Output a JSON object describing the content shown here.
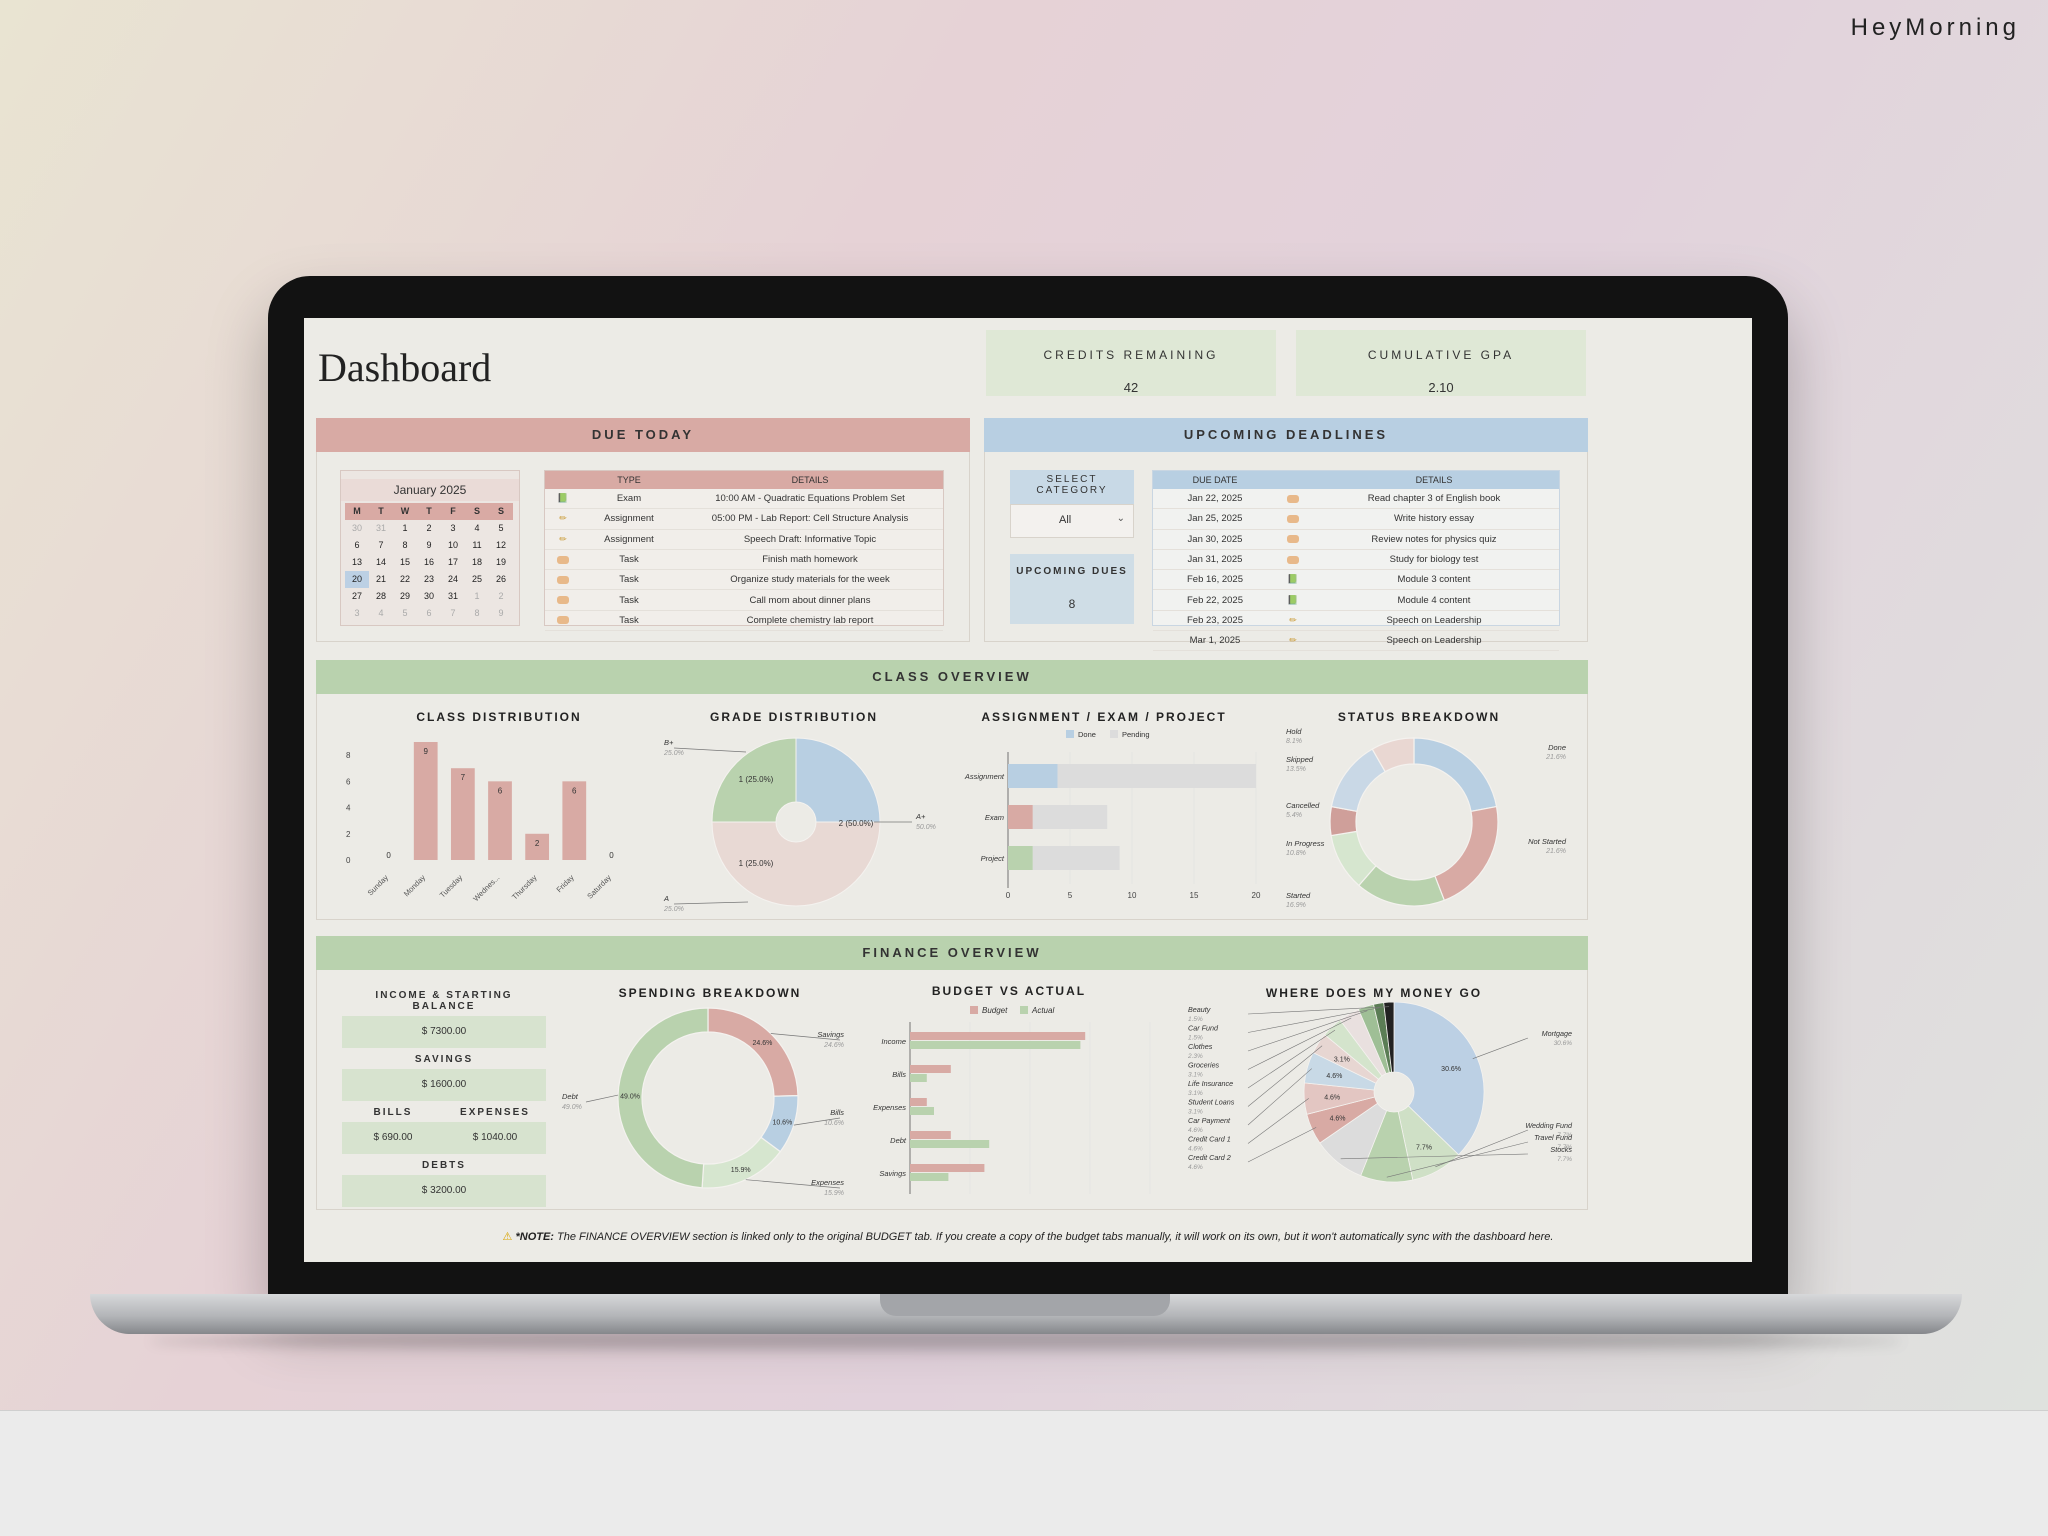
{
  "brand": "HeyMorning",
  "colors": {
    "pink": "#d8aaa4",
    "blue": "#b8cfe2",
    "green": "#b9d2ae",
    "sand": "#e8d9d4",
    "grey": "#dcdcdc"
  },
  "dashboard": {
    "title": "Dashboard",
    "credits_label": "CREDITS REMAINING",
    "credits_value": "42",
    "gpa_label": "CUMULATIVE GPA",
    "gpa_value": "2.10"
  },
  "due_today": {
    "title": "DUE TODAY",
    "calendar": {
      "month": "January 2025",
      "weekdays": [
        "M",
        "T",
        "W",
        "T",
        "F",
        "S",
        "S"
      ],
      "days": [
        "30",
        "31",
        "1",
        "2",
        "3",
        "4",
        "5",
        "6",
        "7",
        "8",
        "9",
        "10",
        "11",
        "12",
        "13",
        "14",
        "15",
        "16",
        "17",
        "18",
        "19",
        "20",
        "21",
        "22",
        "23",
        "24",
        "25",
        "26",
        "27",
        "28",
        "29",
        "30",
        "31",
        "1",
        "2",
        "3",
        "4",
        "5",
        "6",
        "7",
        "8",
        "9"
      ]
    },
    "columns": [
      "TYPE",
      "DETAILS"
    ],
    "rows": [
      {
        "icon": "book-icon",
        "type": "Exam",
        "details": "10:00 AM - Quadratic Equations Problem Set"
      },
      {
        "icon": "pencil-icon",
        "type": "Assignment",
        "details": "05:00 PM - Lab Report: Cell Structure Analysis"
      },
      {
        "icon": "pencil-icon",
        "type": "Assignment",
        "details": "Speech Draft: Informative Topic"
      },
      {
        "icon": "task-icon",
        "type": "Task",
        "details": "Finish math homework"
      },
      {
        "icon": "task-icon",
        "type": "Task",
        "details": "Organize study materials for the week"
      },
      {
        "icon": "task-icon",
        "type": "Task",
        "details": "Call mom about dinner plans"
      },
      {
        "icon": "task-icon",
        "type": "Task",
        "details": "Complete chemistry lab report"
      }
    ]
  },
  "upcoming": {
    "title": "UPCOMING DEADLINES",
    "select_label": "SELECT CATEGORY",
    "select_value": "All",
    "dues_label": "UPCOMING DUES",
    "dues_value": "8",
    "columns": [
      "DUE DATE",
      "DETAILS"
    ],
    "rows": [
      {
        "date": "Jan 22, 2025",
        "icon": "task-icon",
        "details": "Read chapter 3 of English book"
      },
      {
        "date": "Jan 25, 2025",
        "icon": "task-icon",
        "details": "Write history essay"
      },
      {
        "date": "Jan 30, 2025",
        "icon": "task-icon",
        "details": "Review notes for physics quiz"
      },
      {
        "date": "Jan 31, 2025",
        "icon": "task-icon",
        "details": "Study for biology test"
      },
      {
        "date": "Feb 16, 2025",
        "icon": "book-icon",
        "details": "Module 3 content"
      },
      {
        "date": "Feb 22, 2025",
        "icon": "book-icon",
        "details": "Module 4 content"
      },
      {
        "date": "Feb 23, 2025",
        "icon": "pencil-icon",
        "details": "Speech on Leadership"
      },
      {
        "date": "Mar 1, 2025",
        "icon": "pencil-icon",
        "details": "Speech on Leadership"
      }
    ]
  },
  "class_overview": {
    "title": "CLASS OVERVIEW"
  },
  "finance_overview": {
    "title": "FINANCE OVERVIEW",
    "income_label": "INCOME & STARTING BALANCE",
    "income_value": "$ 7300.00",
    "savings_label": "SAVINGS",
    "savings_value": "$ 1600.00",
    "bills_label": "BILLS",
    "bills_value": "$ 690.00",
    "expenses_label": "EXPENSES",
    "expenses_value": "$ 1040.00",
    "debts_label": "DEBTS",
    "debts_value": "$ 3200.00"
  },
  "note": {
    "prefix": "*NOTE:",
    "text": "The FINANCE OVERVIEW section is linked only to the original BUDGET tab. If you create a copy of the budget tabs manually, it will work on its own, but it won't automatically sync with the dashboard here."
  },
  "chart_data": [
    {
      "type": "bar",
      "title": "CLASS DISTRIBUTION",
      "categories": [
        "Sunday",
        "Monday",
        "Tuesday",
        "Wednes...",
        "Thursday",
        "Friday",
        "Saturday"
      ],
      "values": [
        0,
        9,
        7,
        6,
        2,
        6,
        0
      ],
      "yticks": [
        "0",
        "2",
        "4",
        "6",
        "8"
      ],
      "ylim": [
        0,
        8
      ]
    },
    {
      "type": "pie",
      "title": "GRADE DISTRIBUTION",
      "slices": [
        {
          "label": "B+",
          "value": 1,
          "pct_label": "1 (25.0%)",
          "side_pct": "25.0%"
        },
        {
          "label": "A+",
          "value": 2,
          "pct_label": "2 (50.0%)",
          "side_pct": "50.0%"
        },
        {
          "label": "A",
          "value": 1,
          "pct_label": "1 (25.0%)",
          "side_pct": "25.0%"
        }
      ]
    },
    {
      "type": "bar",
      "title": "ASSIGNMENT / EXAM / PROJECT",
      "categories": [
        "Assignment",
        "Exam",
        "Project"
      ],
      "series": [
        {
          "name": "Done",
          "values": [
            4,
            2,
            2
          ]
        },
        {
          "name": "Pending",
          "values": [
            16,
            6,
            7
          ]
        }
      ],
      "xticks": [
        "0",
        "5",
        "10",
        "15",
        "20"
      ],
      "xlim": [
        0,
        20
      ]
    },
    {
      "type": "pie",
      "title": "STATUS BREAKDOWN",
      "slices": [
        {
          "label": "Done",
          "value": 21.6,
          "pct": "21.6%"
        },
        {
          "label": "Not Started",
          "value": 21.6,
          "pct": "21.6%"
        },
        {
          "label": "Started",
          "value": 16.9,
          "pct": "16.9%"
        },
        {
          "label": "In Progress",
          "value": 10.8,
          "pct": "10.8%"
        },
        {
          "label": "Cancelled",
          "value": 5.4,
          "pct": "5.4%"
        },
        {
          "label": "Skipped",
          "value": 13.5,
          "pct": "13.5%"
        },
        {
          "label": "Hold",
          "value": 8.1,
          "pct": "8.1%"
        }
      ]
    },
    {
      "type": "pie",
      "title": "SPENDING BREAKDOWN",
      "slices": [
        {
          "label": "Savings",
          "value": 24.6,
          "pct": "24.6%"
        },
        {
          "label": "Bills",
          "value": 10.6,
          "pct": "10.6%"
        },
        {
          "label": "Expenses",
          "value": 15.9,
          "pct": "15.9%"
        },
        {
          "label": "Debt",
          "value": 49.0,
          "pct": "49.0%"
        }
      ]
    },
    {
      "type": "bar",
      "title": "BUDGET VS ACTUAL",
      "categories": [
        "Income",
        "Bills",
        "Expenses",
        "Debt",
        "Savings"
      ],
      "series": [
        {
          "name": "Budget",
          "values": [
            7300,
            1700,
            700,
            1700,
            3100
          ]
        },
        {
          "name": "Actual",
          "values": [
            7100,
            700,
            1000,
            3300,
            1600
          ]
        }
      ],
      "xlim": [
        0,
        10000
      ]
    },
    {
      "type": "pie",
      "title": "WHERE DOES MY MONEY GO",
      "slices": [
        {
          "label": "Mortgage",
          "value": 30.6,
          "pct": "30.6%"
        },
        {
          "label": "Wedding Fund",
          "value": 7.7,
          "pct": "7.7%"
        },
        {
          "label": "Travel Fund",
          "value": 7.7,
          "pct": "7.7%"
        },
        {
          "label": "Stocks",
          "value": 7.7,
          "pct": "7.7%"
        },
        {
          "label": "Credit Card 2",
          "value": 4.6,
          "pct": "4.6%"
        },
        {
          "label": "Credit Card 1",
          "value": 4.6,
          "pct": "4.6%"
        },
        {
          "label": "Car Payment",
          "value": 4.6,
          "pct": "4.6%"
        },
        {
          "label": "Student Loans",
          "value": 3.1,
          "pct": "3.1%"
        },
        {
          "label": "Life Insurance",
          "value": 3.1,
          "pct": "3.1%"
        },
        {
          "label": "Groceries",
          "value": 3.1,
          "pct": "3.1%"
        },
        {
          "label": "Clothes",
          "value": 2.3,
          "pct": "2.3%"
        },
        {
          "label": "Car Fund",
          "value": 1.5,
          "pct": "1.5%"
        },
        {
          "label": "Beauty",
          "value": 1.5,
          "pct": "1.5%"
        }
      ]
    }
  ]
}
